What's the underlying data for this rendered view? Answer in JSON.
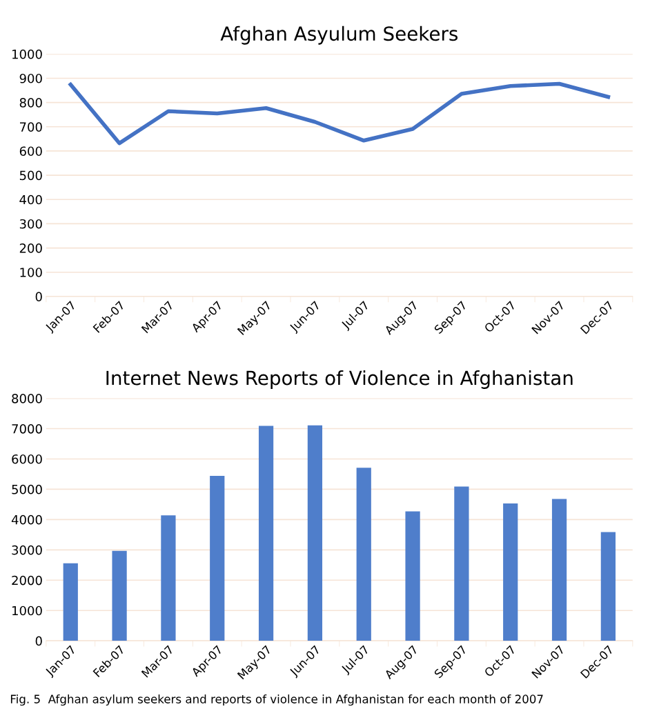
{
  "chart_data": [
    {
      "type": "line",
      "title": "Afghan Asyulum Seekers",
      "categories": [
        "Jan-07",
        "Feb-07",
        "Mar-07",
        "Apr-07",
        "May-07",
        "Jun-07",
        "Jul-07",
        "Aug-07",
        "Sep-07",
        "Oct-07",
        "Nov-07",
        "Dec-07"
      ],
      "series": [
        {
          "color": "#4472c4",
          "values": [
            874,
            632,
            764,
            755,
            777,
            720,
            643,
            691,
            836,
            868,
            877,
            823
          ]
        }
      ],
      "ylim": [
        0,
        1000
      ],
      "yticks": [
        0,
        100,
        200,
        300,
        400,
        500,
        600,
        700,
        800,
        900,
        1000
      ],
      "grid": "y",
      "marker": "none",
      "line_style": "solid"
    },
    {
      "type": "bar",
      "title": "Internet News Reports of Violence in Afghanistan",
      "categories": [
        "Jan-07",
        "Feb-07",
        "Mar-07",
        "Apr-07",
        "May-07",
        "Jun-07",
        "Jul-07",
        "Aug-07",
        "Sep-07",
        "Oct-07",
        "Nov-07",
        "Dec-07"
      ],
      "series": [
        {
          "color": "#4f7ecb",
          "values": [
            2560,
            2970,
            4140,
            5440,
            7090,
            7110,
            5710,
            4270,
            5090,
            4530,
            4680,
            3590
          ]
        }
      ],
      "ylim": [
        0,
        8000
      ],
      "yticks": [
        0,
        1000,
        2000,
        3000,
        4000,
        5000,
        6000,
        7000,
        8000
      ],
      "grid": "y",
      "annotations": [
        "Fig. 5  Afghan asylum seekers and reports of violence in Afghanistan for each month of 2007"
      ]
    }
  ]
}
